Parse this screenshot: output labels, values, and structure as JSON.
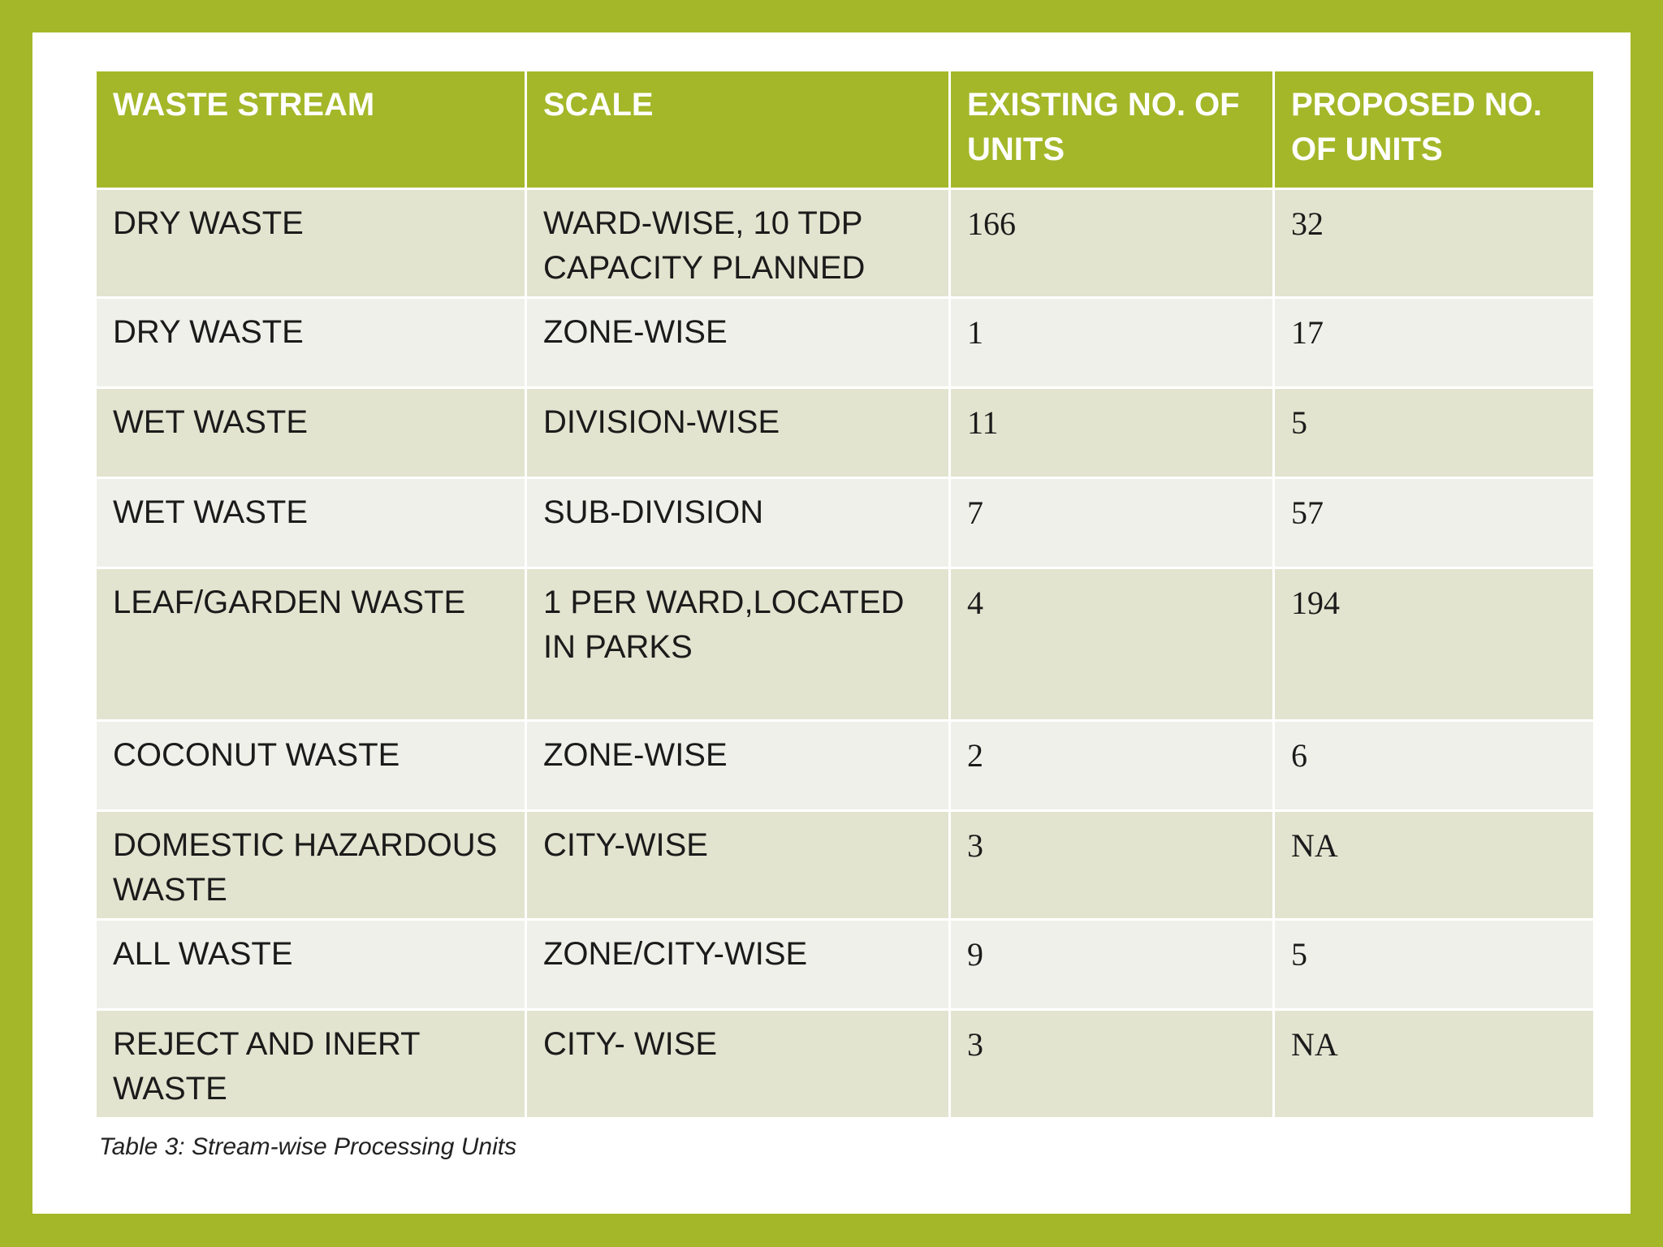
{
  "table": {
    "headers": [
      "WASTE STREAM",
      "SCALE",
      "EXISTING NO. OF UNITS",
      "PROPOSED NO. OF UNITS"
    ],
    "rows": [
      {
        "stream": "DRY WASTE",
        "scale": "WARD-WISE, 10 TDP CAPACITY PLANNED",
        "existing": "166",
        "proposed": "32"
      },
      {
        "stream": "DRY WASTE",
        "scale": "ZONE-WISE",
        "existing": "1",
        "proposed": "17"
      },
      {
        "stream": "WET WASTE",
        "scale": "DIVISION-WISE",
        "existing": "11",
        "proposed": "5"
      },
      {
        "stream": "WET WASTE",
        "scale": "SUB-DIVISION",
        "existing": "7",
        "proposed": "57"
      },
      {
        "stream": "LEAF/GARDEN WASTE",
        "scale": "1 PER WARD,LOCATED IN PARKS",
        "existing": "4",
        "proposed": "194"
      },
      {
        "stream": "COCONUT WASTE",
        "scale": "ZONE-WISE",
        "existing": "2",
        "proposed": "6"
      },
      {
        "stream": "DOMESTIC HAZARDOUS WASTE",
        "scale": "CITY-WISE",
        "existing": "3",
        "proposed": "NA"
      },
      {
        "stream": "ALL WASTE",
        "scale": "ZONE/CITY-WISE",
        "existing": "9",
        "proposed": "5"
      },
      {
        "stream": "REJECT AND INERT WASTE",
        "scale": "CITY- WISE",
        "existing": "3",
        "proposed": "NA"
      }
    ]
  },
  "caption": "Table 3: Stream-wise Processing Units",
  "colors": {
    "frame": "#a4b729",
    "header_bg": "#a4b729",
    "row_odd": "#e2e4cf",
    "row_even": "#f0f0ea"
  }
}
